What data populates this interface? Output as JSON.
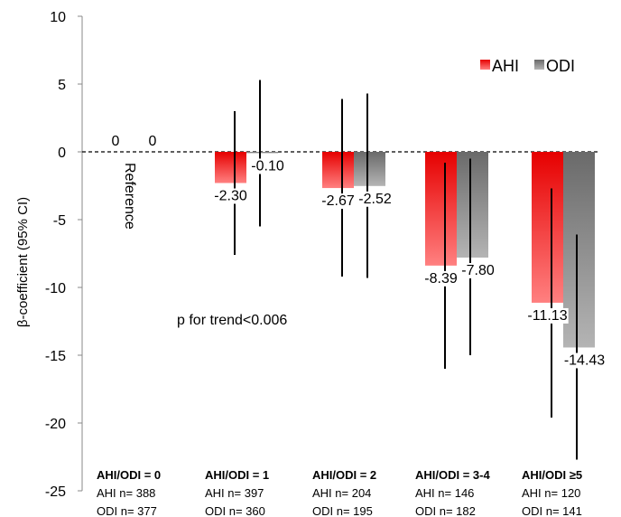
{
  "chart_data": {
    "type": "bar",
    "ylabel": "β-coefficient (95% CI)",
    "ylim": [
      -25,
      10
    ],
    "yticks": [
      10,
      5,
      0,
      -5,
      -10,
      -15,
      -20,
      -25
    ],
    "ytick_labels": [
      "10",
      "5",
      "0",
      "-5",
      "-10",
      "-15",
      "-20",
      "-25"
    ],
    "grid": false,
    "legend_position": "top-right",
    "reference_line": 0,
    "categories": [
      "AHI/ODI = 0",
      "AHI/ODI = 1",
      "AHI/ODI = 2",
      "AHI/ODI = 3-4",
      "AHI/ODI ≥5"
    ],
    "series": [
      {
        "name": "AHI",
        "color": "#e00000",
        "values": [
          0,
          -2.3,
          -2.67,
          -8.39,
          -11.13
        ],
        "value_labels": [
          "0",
          "-2.30",
          "-2.67",
          "-8.39",
          "-11.13"
        ],
        "ci_low": [
          null,
          -7.6,
          -9.2,
          -16.0,
          -19.6
        ],
        "ci_high": [
          null,
          3.0,
          3.9,
          -0.8,
          -2.7
        ],
        "n_labels": [
          "AHI n= 388",
          "AHI n= 397",
          "AHI n= 204",
          "AHI n= 146",
          "AHI n= 120"
        ]
      },
      {
        "name": "ODI",
        "color": "#6e6e6e",
        "values": [
          0,
          -0.1,
          -2.52,
          -7.8,
          -14.43
        ],
        "value_labels": [
          "0",
          "-0.10",
          "-2.52",
          "-7.80",
          "-14.43"
        ],
        "ci_low": [
          null,
          -5.5,
          -9.3,
          -15.0,
          -22.7
        ],
        "ci_high": [
          null,
          5.3,
          4.3,
          -0.5,
          -6.1
        ],
        "n_labels": [
          "ODI n= 377",
          "ODI n= 360",
          "ODI n= 195",
          "ODI n= 182",
          "ODI n= 141"
        ]
      }
    ],
    "annotations": {
      "reference": "Reference",
      "trend": "p for trend<0.006"
    }
  }
}
